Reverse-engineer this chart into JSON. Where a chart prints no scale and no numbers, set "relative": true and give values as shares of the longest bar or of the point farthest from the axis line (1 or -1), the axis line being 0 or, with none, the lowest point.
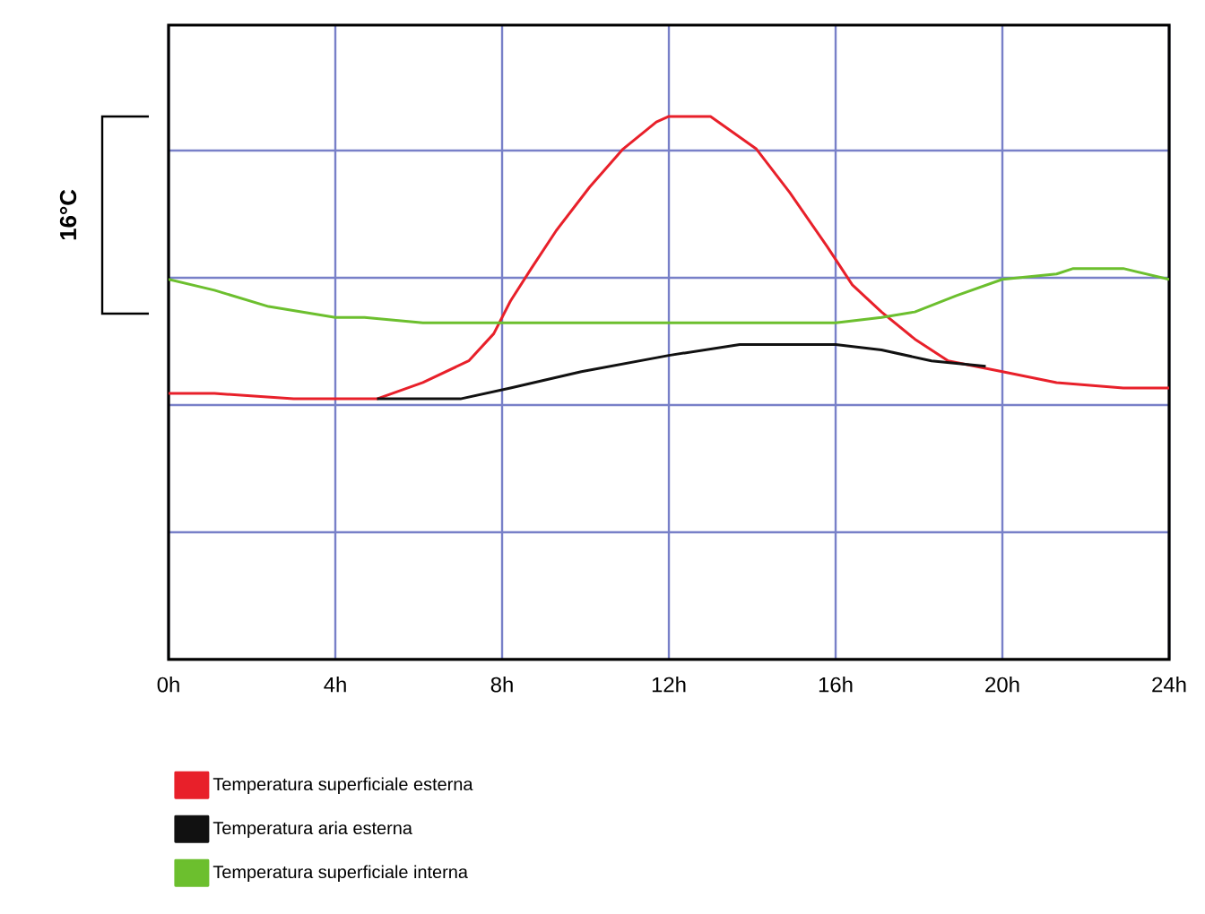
{
  "chart_data": {
    "type": "line",
    "relative": true,
    "xlim": [
      0,
      24
    ],
    "xticks": [
      {
        "value": 0,
        "label": "0h"
      },
      {
        "value": 4,
        "label": "4h"
      },
      {
        "value": 8,
        "label": "8h"
      },
      {
        "value": 12,
        "label": "12h"
      },
      {
        "value": 16,
        "label": "16h"
      },
      {
        "value": 20,
        "label": "20h"
      },
      {
        "value": 24,
        "label": "24h"
      }
    ],
    "grid": true,
    "legend": "bottom",
    "tick_labels": "x",
    "line_style": "solid",
    "annotations": [
      "16°C"
    ],
    "series": [
      {
        "name": "Temperatura superficiale esterna",
        "color": "#e8202a",
        "x": [
          0,
          1.1,
          3,
          5,
          6.1,
          7.2,
          7.8,
          8.2,
          8.7,
          9.3,
          10.1,
          10.9,
          11.7,
          12,
          13,
          14.1,
          14.9,
          15.8,
          16.4,
          17.1,
          17.9,
          18.7,
          20,
          21.3,
          22.9,
          24
        ],
        "values": [
          0.49,
          0.49,
          0.48,
          0.48,
          0.51,
          0.55,
          0.6,
          0.66,
          0.72,
          0.79,
          0.87,
          0.94,
          0.99,
          1,
          1,
          0.94,
          0.86,
          0.76,
          0.69,
          0.64,
          0.59,
          0.55,
          0.53,
          0.51,
          0.5,
          0.5
        ]
      },
      {
        "name": "Temperatura aria esterna",
        "color": "#111111",
        "x": [
          5,
          7,
          8.2,
          9.9,
          12,
          13.7,
          14.3,
          16,
          17.1,
          18.3,
          19.6
        ],
        "values": [
          0.48,
          0.48,
          0.5,
          0.53,
          0.56,
          0.58,
          0.58,
          0.58,
          0.57,
          0.55,
          0.54
        ]
      },
      {
        "name": "Temperatura superficiale interna",
        "color": "#6cbf2e",
        "x": [
          0,
          1.1,
          2.4,
          4,
          4.7,
          6.1,
          8.2,
          10.1,
          13.7,
          16,
          17.1,
          17.9,
          18.9,
          20,
          21.3,
          21.7,
          22.9,
          24
        ],
        "values": [
          0.7,
          0.68,
          0.65,
          0.63,
          0.63,
          0.62,
          0.62,
          0.62,
          0.62,
          0.62,
          0.63,
          0.64,
          0.67,
          0.7,
          0.71,
          0.72,
          0.72,
          0.7
        ]
      }
    ]
  }
}
